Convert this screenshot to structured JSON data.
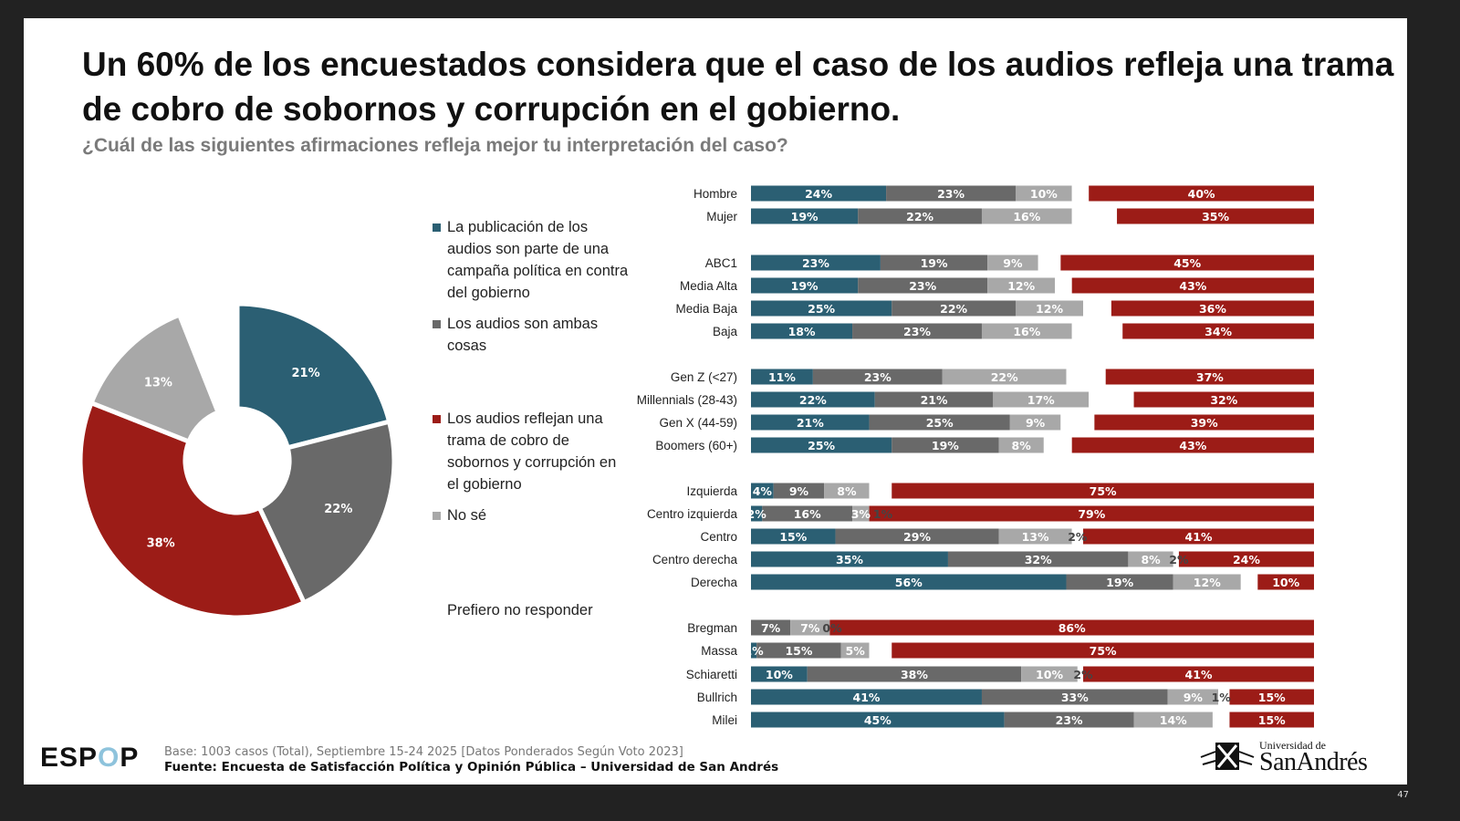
{
  "title": "Un 60% de los encuestados considera que el caso de los audios refleja una trama de cobro de sobornos y corrupción en el gobierno.",
  "subtitle": "¿Cuál de las siguientes afirmaciones refleja mejor tu interpretación del caso?",
  "legend": [
    {
      "label": "La publicación de los audios son parte de una campaña política en contra del gobierno",
      "color": "#2b5f73"
    },
    {
      "label": "Los audios son ambas cosas",
      "color": "#696969"
    },
    {
      "label": "Los audios reflejan una trama de cobro de sobornos y corrupción en el gobierno",
      "color": "#9c1c17"
    },
    {
      "label": "No sé",
      "color": "#a8a8a8"
    },
    {
      "label": "Prefiero no responder",
      "color": "#ffffff"
    }
  ],
  "chart_data": [
    {
      "type": "pie",
      "donut": true,
      "slices": [
        {
          "key": "campana",
          "value": 21,
          "label": "21%",
          "color": "#2b5f73"
        },
        {
          "key": "ambas",
          "value": 22,
          "label": "22%",
          "color": "#696969"
        },
        {
          "key": "corrupcion",
          "value": 38,
          "label": "38%",
          "color": "#9c1c17"
        },
        {
          "key": "nose",
          "value": 13,
          "label": "13%",
          "color": "#a8a8a8"
        },
        {
          "key": "prefiero",
          "value": 6,
          "label": "",
          "color": "#ffffff"
        }
      ]
    },
    {
      "type": "bar",
      "orientation": "horizontal",
      "stacked": true,
      "series_order": [
        "campana",
        "ambas",
        "nose",
        "prefiero",
        "corrupcion"
      ],
      "colors": {
        "campana": "#2b5f73",
        "ambas": "#696969",
        "nose": "#a8a8a8",
        "prefiero": "#ffffff",
        "corrupcion": "#9c1c17"
      },
      "groups": [
        {
          "rows": [
            {
              "label": "Hombre",
              "campana": 24,
              "ambas": 23,
              "nose": 10,
              "prefiero": null,
              "corrupcion": 40
            },
            {
              "label": "Mujer",
              "campana": 19,
              "ambas": 22,
              "nose": 16,
              "prefiero": null,
              "corrupcion": 35
            }
          ]
        },
        {
          "rows": [
            {
              "label": "ABC1",
              "campana": 23,
              "ambas": 19,
              "nose": 9,
              "prefiero": null,
              "corrupcion": 45
            },
            {
              "label": "Media Alta",
              "campana": 19,
              "ambas": 23,
              "nose": 12,
              "prefiero": null,
              "corrupcion": 43
            },
            {
              "label": "Media Baja",
              "campana": 25,
              "ambas": 22,
              "nose": 12,
              "prefiero": null,
              "corrupcion": 36
            },
            {
              "label": "Baja",
              "campana": 18,
              "ambas": 23,
              "nose": 16,
              "prefiero": null,
              "corrupcion": 34
            }
          ]
        },
        {
          "rows": [
            {
              "label": "Gen Z (<27)",
              "campana": 11,
              "ambas": 23,
              "nose": 22,
              "prefiero": null,
              "corrupcion": 37
            },
            {
              "label": "Millennials (28-43)",
              "campana": 22,
              "ambas": 21,
              "nose": 17,
              "prefiero": null,
              "corrupcion": 32
            },
            {
              "label": "Gen X (44-59)",
              "campana": 21,
              "ambas": 25,
              "nose": 9,
              "prefiero": null,
              "corrupcion": 39
            },
            {
              "label": "Boomers (60+)",
              "campana": 25,
              "ambas": 19,
              "nose": 8,
              "prefiero": null,
              "corrupcion": 43
            }
          ]
        },
        {
          "rows": [
            {
              "label": "Izquierda",
              "campana": 4,
              "ambas": 9,
              "nose": 8,
              "prefiero": null,
              "corrupcion": 75
            },
            {
              "label": "Centro izquierda",
              "campana": 2,
              "ambas": 16,
              "nose": 3,
              "prefiero": 1,
              "corrupcion": 79
            },
            {
              "label": "Centro",
              "campana": 15,
              "ambas": 29,
              "nose": 13,
              "prefiero": 2,
              "corrupcion": 41
            },
            {
              "label": "Centro derecha",
              "campana": 35,
              "ambas": 32,
              "nose": 8,
              "prefiero": 2,
              "corrupcion": 24
            },
            {
              "label": "Derecha",
              "campana": 56,
              "ambas": 19,
              "nose": 12,
              "prefiero": null,
              "corrupcion": 10
            }
          ]
        },
        {
          "rows": [
            {
              "label": "Bregman",
              "campana": 0,
              "ambas": 7,
              "nose": 7,
              "prefiero": 0,
              "corrupcion": 86
            },
            {
              "label": "Massa",
              "campana": 1,
              "ambas": 15,
              "nose": 5,
              "prefiero": null,
              "corrupcion": 75
            },
            {
              "label": "Schiaretti",
              "campana": 10,
              "ambas": 38,
              "nose": 10,
              "prefiero": 2,
              "corrupcion": 41
            },
            {
              "label": "Bullrich",
              "campana": 41,
              "ambas": 33,
              "nose": 9,
              "prefiero": 1,
              "corrupcion": 15
            },
            {
              "label": "Milei",
              "campana": 45,
              "ambas": 23,
              "nose": 14,
              "prefiero": null,
              "corrupcion": 15
            }
          ]
        }
      ],
      "xlim": [
        0,
        100
      ]
    }
  ],
  "footer": {
    "base": "Base: 1003 casos (Total), Septiembre 15-24 2025 [Datos Ponderados Según Voto 2023]",
    "source": "Fuente: Encuesta de Satisfacción Política y Opinión Pública – Universidad de San Andrés"
  },
  "logos": {
    "espop": "ESPOP",
    "university_small": "Universidad de",
    "university_big": "SanAndrés"
  },
  "page_number": "47"
}
